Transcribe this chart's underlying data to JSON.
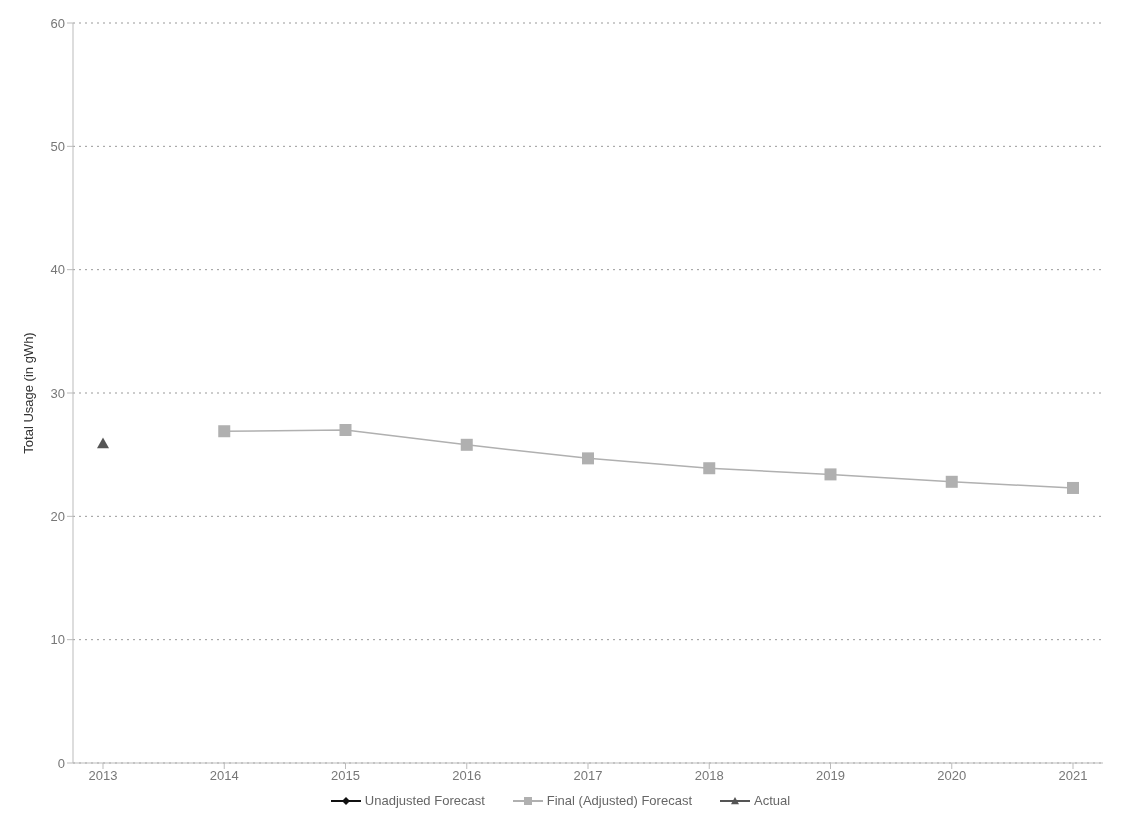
{
  "chart_data": {
    "type": "line",
    "ylabel": "Total Usage (in gWh)",
    "categories": [
      "2013",
      "2014",
      "2015",
      "2016",
      "2017",
      "2018",
      "2019",
      "2020",
      "2021"
    ],
    "series": [
      {
        "name": "Unadjusted Forecast",
        "color": "#111111",
        "marker": "diamond",
        "values": [
          null,
          null,
          null,
          null,
          null,
          null,
          null,
          null,
          null
        ]
      },
      {
        "name": "Final (Adjusted) Forecast",
        "color": "#b0b0b0",
        "marker": "square",
        "values": [
          null,
          26.9,
          27.0,
          25.8,
          24.7,
          23.9,
          23.4,
          22.8,
          22.3
        ]
      },
      {
        "name": "Actual",
        "color": "#555555",
        "marker": "triangle",
        "values": [
          25.9,
          null,
          null,
          null,
          null,
          null,
          null,
          null,
          null
        ]
      }
    ],
    "ylim": [
      0,
      60
    ],
    "yticks": [
      0,
      10,
      20,
      30,
      40,
      50,
      60
    ],
    "grid": "y",
    "legend": "bottom",
    "line_style": "solid"
  }
}
